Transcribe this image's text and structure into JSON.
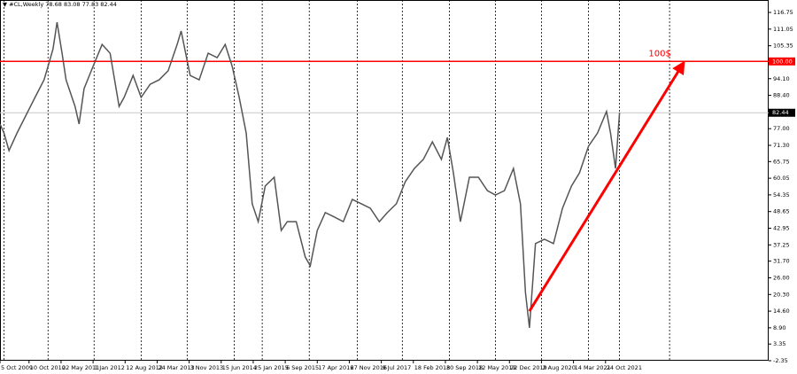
{
  "chart_data": {
    "type": "line",
    "title": "▼ #CL,Weekly  78.68 83.08 77.83 82.44",
    "xlim": [
      24,
      792
    ],
    "ylim": [
      -2.35,
      121
    ],
    "xticks": [
      {
        "value": 24,
        "label": "5 Oct 2009"
      },
      {
        "value": 53,
        "label": "10 Oct 2010"
      },
      {
        "value": 85,
        "label": "22 May 2011"
      },
      {
        "value": 117,
        "label": "1 Jan 2012"
      },
      {
        "value": 149,
        "label": "12 Aug 2012"
      },
      {
        "value": 181,
        "label": "24 Mar 2013"
      },
      {
        "value": 213,
        "label": "3 Nov 2013"
      },
      {
        "value": 245,
        "label": "15 Jun 2014"
      },
      {
        "value": 277,
        "label": "25 Jan 2015"
      },
      {
        "value": 309,
        "label": "6 Sep 2015"
      },
      {
        "value": 341,
        "label": "17 Apr 2016"
      },
      {
        "value": 373,
        "label": "27 Nov 2016"
      },
      {
        "value": 405,
        "label": "9 Jul 2017"
      },
      {
        "value": 437,
        "label": "18 Feb 2018"
      },
      {
        "value": 469,
        "label": "30 Sep 2018"
      },
      {
        "value": 501,
        "label": "12 May 2019"
      },
      {
        "value": 533,
        "label": "22 Dec 2019"
      },
      {
        "value": 565,
        "label": "2 Aug 2020"
      },
      {
        "value": 597,
        "label": "14 Mar 2021"
      },
      {
        "value": 629,
        "label": "24 Oct 2021"
      }
    ],
    "yticks": [
      116.75,
      111.05,
      105.35,
      {
        "value": 94.1,
        "label": "94.10"
      },
      {
        "value": 88.4,
        "label": "88.40"
      },
      {
        "value": 77,
        "label": "77.00"
      },
      {
        "value": 71.3,
        "label": "71.30"
      },
      65.75,
      60.05,
      54.35,
      48.65,
      42.95,
      37.25,
      {
        "value": 31.7,
        "label": "31.70"
      },
      {
        "value": 26,
        "label": "26.00"
      },
      {
        "value": 20.3,
        "label": "20.30"
      },
      {
        "value": 14.6,
        "label": "14.60"
      },
      {
        "value": 8.9,
        "label": "8.90"
      },
      3.35,
      -2.35
    ],
    "grid_x": [
      28,
      72,
      118,
      165,
      211,
      258,
      286,
      333,
      381,
      426,
      473,
      519,
      565,
      612,
      643,
      693
    ],
    "series": [
      {
        "name": "#CL,Weekly",
        "color": "#555555",
        "x": [
          24,
          28,
          33,
          41,
          50,
          59,
          68,
          72,
          77,
          81,
          86,
          90,
          99,
          103,
          108,
          117,
          126,
          134,
          143,
          148,
          157,
          165,
          174,
          183,
          192,
          201,
          205,
          214,
          223,
          232,
          241,
          249,
          256,
          263,
          270,
          276,
          282,
          289,
          298,
          305,
          311,
          320,
          329,
          334,
          341,
          349,
          358,
          367,
          376,
          385,
          394,
          403,
          411,
          420,
          429,
          438,
          447,
          456,
          465,
          471,
          477,
          484,
          493,
          502,
          511,
          519,
          528,
          537,
          544,
          549,
          553,
          559,
          568,
          577,
          586,
          595,
          603,
          612,
          621,
          630,
          634,
          639,
          643
        ],
        "values": [
          78.6,
          75.5,
          69.5,
          75.5,
          81.6,
          87.7,
          93.7,
          98.3,
          104.3,
          113.4,
          102.8,
          93.7,
          84.6,
          78.6,
          90.7,
          98.3,
          105.8,
          102.8,
          84.6,
          87.7,
          95.2,
          87.7,
          92.2,
          93.7,
          96.8,
          105.8,
          110.4,
          95.2,
          93.7,
          102.8,
          101.3,
          105.8,
          98.3,
          87.7,
          75.5,
          51.3,
          45.2,
          57.4,
          60.4,
          42.2,
          45.2,
          45.2,
          33.1,
          30.1,
          42.2,
          48.3,
          46.8,
          45.2,
          52.8,
          51.3,
          49.8,
          45.2,
          48.3,
          51.3,
          58.9,
          63.4,
          66.5,
          72.5,
          66.5,
          74.0,
          61.9,
          45.2,
          60.4,
          60.4,
          55.8,
          54.3,
          55.8,
          63.4,
          51.3,
          21.0,
          8.9,
          37.7,
          39.2,
          37.7,
          49.8,
          57.4,
          61.9,
          71.0,
          75.5,
          82.9,
          75.5,
          63.4,
          82.44
        ]
      }
    ],
    "price_lines": [
      {
        "value": 100,
        "label": "100.00",
        "color": "#ff0000"
      },
      {
        "value": 82.44,
        "label": "82.44",
        "color": "#c8c8c8"
      }
    ],
    "annotation": {
      "text": "100$",
      "x": 672,
      "y": 102.6,
      "color": "#ff0000"
    },
    "arrow": {
      "x": [
        553,
        707
      ],
      "y": [
        14.6,
        99.5
      ],
      "color": "#ff0000"
    }
  }
}
